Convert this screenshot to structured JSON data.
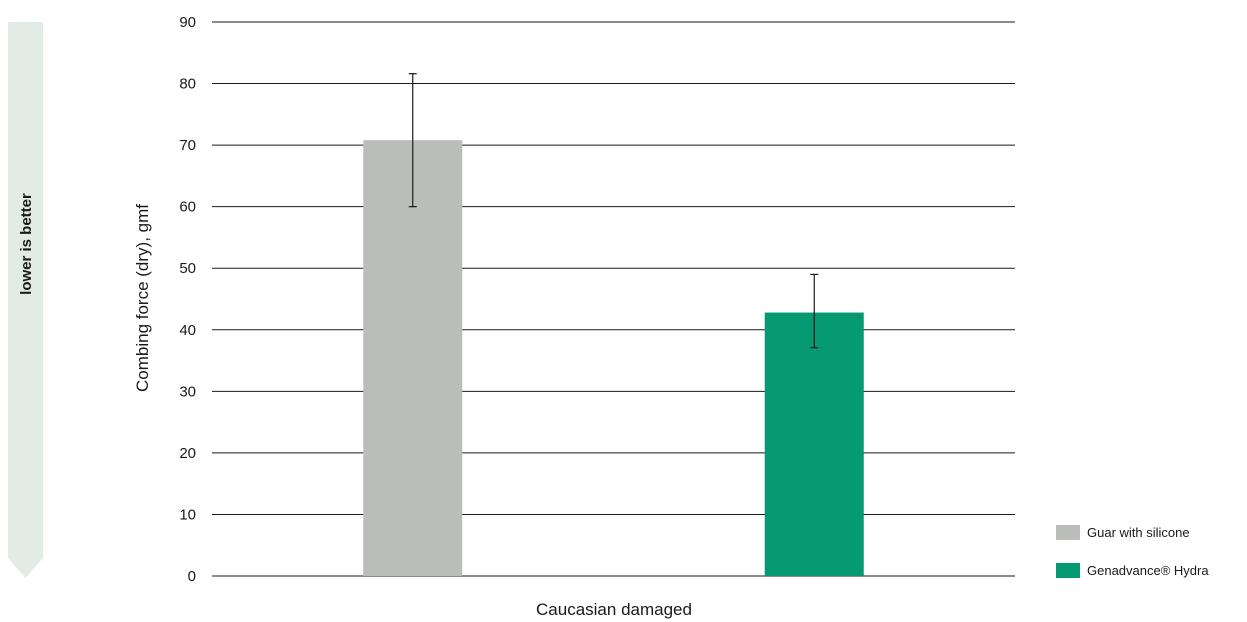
{
  "side_note": {
    "label": "lower is better",
    "color": "#e2ebe6"
  },
  "chart_data": {
    "type": "bar",
    "categories": [
      "Caucasian damaged"
    ],
    "xlabel": "Caucasian damaged",
    "ylabel": "Combing force (dry), gmf",
    "ylim": [
      0,
      90
    ],
    "yticks": [
      0,
      10,
      20,
      30,
      40,
      50,
      60,
      70,
      80,
      90
    ],
    "grid": true,
    "legend_position": "bottom-right",
    "series": [
      {
        "name": "Guar with silicone",
        "values": [
          70.8
        ],
        "error_low": [
          60
        ],
        "error_high": [
          81.6
        ],
        "color": "#bbbdbb"
      },
      {
        "name": "Genadvance® Hydra",
        "values": [
          42.8
        ],
        "error_low": [
          37.1
        ],
        "error_high": [
          49
        ],
        "color": "#079a72"
      }
    ]
  }
}
